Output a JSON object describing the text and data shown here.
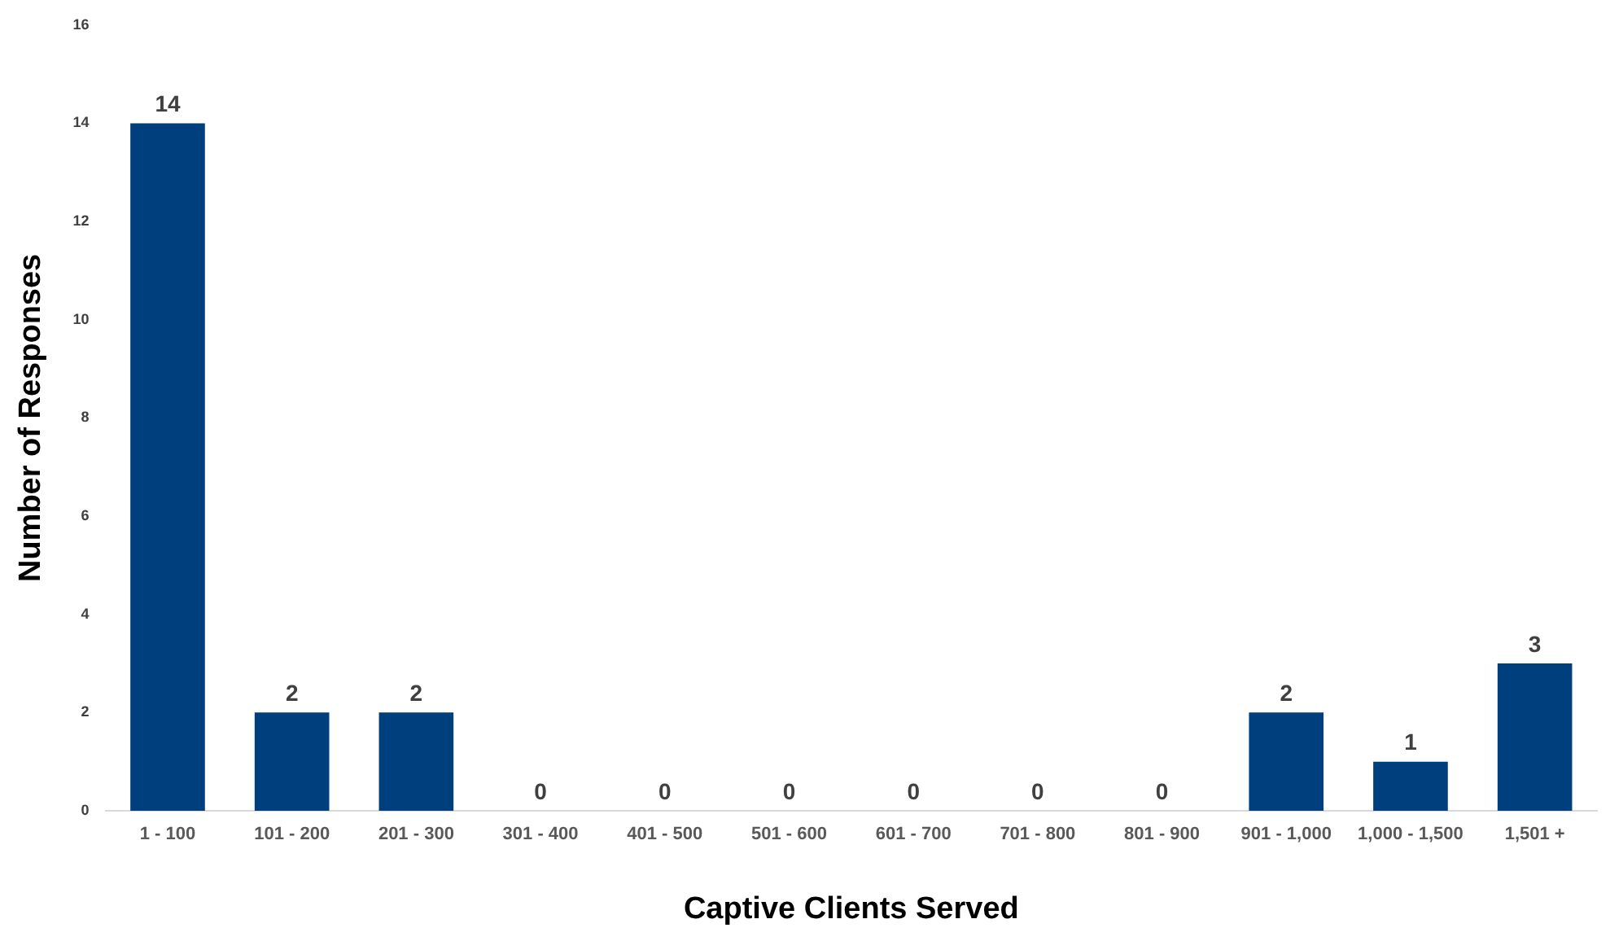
{
  "chart_data": {
    "type": "bar",
    "xlabel": "Captive Clients Served",
    "ylabel": "Number of Responses",
    "categories": [
      "1 - 100",
      "101 - 200",
      "201 - 300",
      "301 - 400",
      "401 - 500",
      "501 - 600",
      "601 - 700",
      "701 - 800",
      "801 - 900",
      "901 - 1,000",
      "1,000 - 1,500",
      "1,501 +"
    ],
    "values": [
      14,
      2,
      2,
      0,
      0,
      0,
      0,
      0,
      0,
      2,
      1,
      3
    ],
    "color": "#003f7d",
    "ylim": [
      0,
      16
    ],
    "yticks": [
      0,
      2,
      4,
      6,
      8,
      10,
      12,
      14,
      16
    ],
    "grid": false,
    "legend": false,
    "data_labels": true
  }
}
